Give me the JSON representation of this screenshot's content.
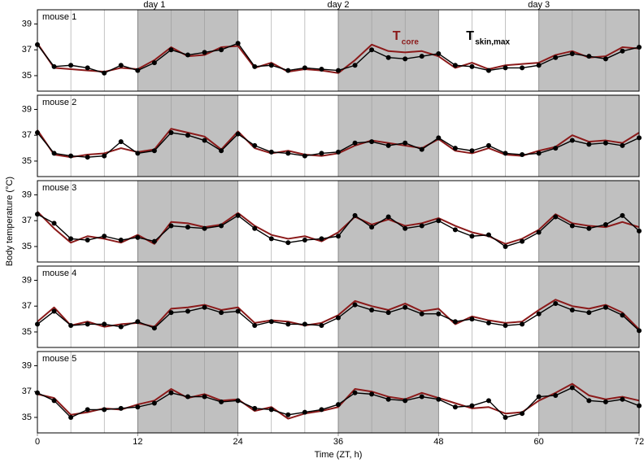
{
  "chart_data": {
    "type": "line",
    "xlabel": "Time (ZT, h)",
    "ylabel": "Body temperature (°C)",
    "x": [
      0,
      2,
      4,
      6,
      8,
      10,
      12,
      14,
      16,
      18,
      20,
      22,
      24,
      26,
      28,
      30,
      32,
      34,
      36,
      38,
      40,
      42,
      44,
      46,
      48,
      50,
      52,
      54,
      56,
      58,
      60,
      62,
      64,
      66,
      68,
      70,
      72
    ],
    "xlim": [
      0,
      72
    ],
    "xticks": [
      0,
      12,
      24,
      36,
      48,
      60,
      72
    ],
    "xgrid": [
      4,
      8,
      16,
      20,
      28,
      32,
      40,
      44,
      52,
      56,
      64,
      68
    ],
    "ylim": [
      33.8,
      40.1
    ],
    "yticks": [
      35,
      37,
      39
    ],
    "dark_periods": [
      [
        12,
        24
      ],
      [
        36,
        48
      ],
      [
        60,
        72
      ]
    ],
    "shade_color": "#c0c0c0",
    "day_labels": [
      {
        "label": "day 1",
        "x": 14
      },
      {
        "label": "day 2",
        "x": 36
      },
      {
        "label": "day 3",
        "x": 60
      }
    ],
    "panels": [
      {
        "title": "mouse 1",
        "series": [
          {
            "name": "T",
            "subscript": "core",
            "color": "#8b1a1a",
            "values": [
              37.5,
              35.6,
              35.5,
              35.4,
              35.3,
              35.6,
              35.5,
              36.2,
              37.2,
              36.5,
              36.6,
              37.2,
              37.3,
              35.6,
              36.0,
              35.3,
              35.5,
              35.4,
              35.2,
              36.2,
              37.4,
              36.9,
              36.8,
              36.9,
              36.5,
              35.6,
              36.0,
              35.5,
              35.8,
              35.9,
              36.0,
              36.6,
              36.9,
              36.4,
              36.5,
              37.2,
              37.1
            ]
          },
          {
            "name": "T",
            "subscript": "skin,max",
            "color": "#000000",
            "markers": true,
            "values": [
              37.4,
              35.7,
              35.8,
              35.6,
              35.2,
              35.8,
              35.4,
              36.0,
              37.0,
              36.6,
              36.8,
              37.0,
              37.5,
              35.7,
              35.8,
              35.4,
              35.6,
              35.5,
              35.4,
              35.8,
              37.0,
              36.4,
              36.3,
              36.5,
              36.7,
              35.8,
              35.7,
              35.4,
              35.6,
              35.6,
              35.8,
              36.4,
              36.7,
              36.5,
              36.3,
              36.9,
              37.2
            ]
          }
        ]
      },
      {
        "title": "mouse 2",
        "series": [
          {
            "color": "#8b1a1a",
            "values": [
              37.4,
              35.5,
              35.3,
              35.5,
              35.6,
              36.0,
              35.7,
              35.9,
              37.5,
              37.2,
              36.9,
              35.9,
              37.3,
              36.0,
              35.6,
              35.8,
              35.5,
              35.4,
              35.6,
              36.2,
              36.6,
              36.4,
              36.2,
              36.0,
              36.7,
              35.8,
              35.6,
              36.0,
              35.5,
              35.4,
              35.8,
              36.1,
              37.0,
              36.5,
              36.6,
              36.4,
              37.2
            ]
          },
          {
            "color": "#000000",
            "markers": true,
            "values": [
              37.2,
              35.6,
              35.4,
              35.3,
              35.4,
              36.5,
              35.6,
              35.8,
              37.2,
              37.0,
              36.6,
              35.8,
              37.1,
              36.2,
              35.7,
              35.6,
              35.4,
              35.6,
              35.7,
              36.4,
              36.5,
              36.2,
              36.4,
              35.9,
              36.8,
              36.0,
              35.8,
              36.2,
              35.6,
              35.5,
              35.6,
              36.0,
              36.6,
              36.3,
              36.4,
              36.2,
              36.8
            ]
          }
        ]
      },
      {
        "title": "mouse 3",
        "series": [
          {
            "color": "#8b1a1a",
            "values": [
              37.7,
              36.4,
              35.3,
              35.8,
              35.6,
              35.3,
              35.9,
              35.2,
              36.9,
              36.8,
              36.5,
              36.7,
              37.6,
              36.6,
              35.9,
              35.6,
              35.8,
              35.4,
              36.1,
              37.3,
              36.7,
              37.1,
              36.6,
              36.8,
              37.2,
              36.6,
              36.1,
              35.8,
              35.2,
              35.6,
              36.3,
              37.5,
              36.8,
              36.6,
              36.5,
              36.9,
              36.5
            ]
          },
          {
            "color": "#000000",
            "markers": true,
            "values": [
              37.5,
              36.8,
              35.6,
              35.5,
              35.8,
              35.5,
              35.7,
              35.4,
              36.6,
              36.5,
              36.4,
              36.6,
              37.4,
              36.4,
              35.6,
              35.3,
              35.5,
              35.6,
              35.8,
              37.4,
              36.5,
              37.3,
              36.4,
              36.6,
              37.0,
              36.3,
              35.8,
              35.9,
              35.0,
              35.4,
              36.1,
              37.3,
              36.6,
              36.4,
              36.7,
              37.4,
              36.2
            ]
          }
        ]
      },
      {
        "title": "mouse 4",
        "series": [
          {
            "color": "#8b1a1a",
            "values": [
              35.8,
              36.9,
              35.5,
              35.8,
              35.4,
              35.6,
              35.7,
              35.4,
              36.8,
              36.9,
              37.1,
              36.7,
              36.9,
              35.7,
              35.9,
              35.8,
              35.5,
              35.7,
              36.3,
              37.4,
              37.0,
              36.7,
              37.2,
              36.6,
              36.8,
              35.6,
              36.2,
              35.9,
              35.7,
              35.8,
              36.7,
              37.5,
              37.0,
              36.8,
              37.1,
              36.5,
              35.2
            ]
          },
          {
            "color": "#000000",
            "markers": true,
            "values": [
              35.6,
              36.6,
              35.5,
              35.6,
              35.6,
              35.4,
              35.8,
              35.3,
              36.5,
              36.6,
              36.9,
              36.5,
              36.6,
              35.5,
              35.8,
              35.6,
              35.6,
              35.5,
              36.1,
              37.1,
              36.7,
              36.5,
              36.9,
              36.4,
              36.4,
              35.8,
              36.0,
              35.7,
              35.5,
              35.6,
              36.4,
              37.2,
              36.7,
              36.5,
              36.9,
              36.3,
              35.1
            ]
          }
        ]
      },
      {
        "title": "mouse 5",
        "series": [
          {
            "color": "#8b1a1a",
            "values": [
              36.8,
              36.5,
              35.2,
              35.4,
              35.7,
              35.6,
              36.0,
              36.3,
              37.2,
              36.5,
              36.8,
              36.3,
              36.4,
              35.5,
              35.8,
              34.9,
              35.3,
              35.5,
              35.8,
              37.2,
              37.0,
              36.6,
              36.4,
              36.9,
              36.5,
              36.1,
              35.7,
              35.8,
              35.3,
              35.4,
              36.3,
              36.9,
              37.6,
              36.7,
              36.4,
              36.6,
              36.3
            ]
          },
          {
            "color": "#000000",
            "markers": true,
            "values": [
              36.9,
              36.3,
              35.0,
              35.6,
              35.6,
              35.7,
              35.8,
              36.1,
              36.9,
              36.6,
              36.6,
              36.2,
              36.3,
              35.7,
              35.6,
              35.2,
              35.4,
              35.6,
              36.0,
              36.9,
              36.8,
              36.4,
              36.3,
              36.6,
              36.4,
              35.8,
              35.9,
              36.3,
              35.0,
              35.3,
              36.6,
              36.7,
              37.3,
              36.3,
              36.2,
              36.4,
              35.9
            ]
          }
        ]
      }
    ]
  }
}
